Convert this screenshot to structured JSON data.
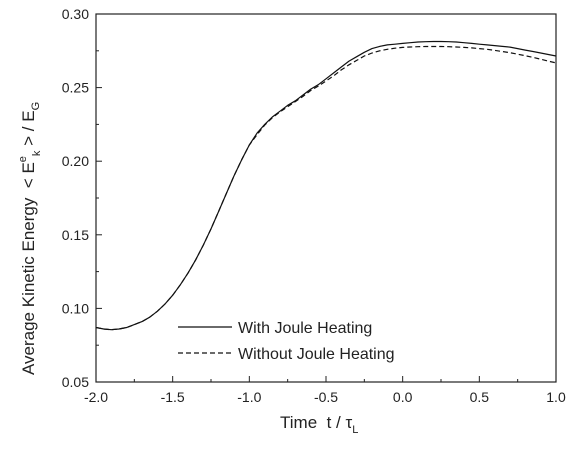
{
  "chart_data": {
    "type": "line",
    "title": "",
    "xlabel": {
      "main": "Time  t / τ",
      "sub": "L"
    },
    "ylabel": {
      "prefix": "Average Kinetic Energy  < E",
      "sup": "e",
      "sub1": "k",
      "mid": " > / E",
      "sub2": "G"
    },
    "xlim": [
      -2.0,
      1.0
    ],
    "ylim": [
      0.05,
      0.3
    ],
    "x_ticks": [
      "-2.0",
      "-1.5",
      "-1.0",
      "-0.5",
      "0.0",
      "0.5",
      "1.0"
    ],
    "y_ticks": [
      "0.05",
      "0.10",
      "0.15",
      "0.20",
      "0.25",
      "0.30"
    ],
    "grid": false,
    "legend_position": "bottom-center",
    "series": [
      {
        "name": "With Joule Heating",
        "style": "solid",
        "x": [
          -2.0,
          -1.95,
          -1.9,
          -1.85,
          -1.8,
          -1.75,
          -1.7,
          -1.65,
          -1.6,
          -1.55,
          -1.5,
          -1.45,
          -1.4,
          -1.35,
          -1.3,
          -1.25,
          -1.2,
          -1.15,
          -1.1,
          -1.05,
          -1.0,
          -0.95,
          -0.9,
          -0.85,
          -0.8,
          -0.75,
          -0.7,
          -0.65,
          -0.6,
          -0.55,
          -0.5,
          -0.45,
          -0.4,
          -0.35,
          -0.3,
          -0.25,
          -0.2,
          -0.15,
          -0.1,
          -0.05,
          0.0,
          0.05,
          0.1,
          0.15,
          0.2,
          0.25,
          0.3,
          0.35,
          0.4,
          0.45,
          0.5,
          0.55,
          0.6,
          0.65,
          0.7,
          0.75,
          0.8,
          0.85,
          0.9,
          0.95,
          1.0
        ],
        "values": [
          0.087,
          0.086,
          0.0855,
          0.086,
          0.087,
          0.089,
          0.091,
          0.094,
          0.098,
          0.103,
          0.109,
          0.116,
          0.124,
          0.133,
          0.143,
          0.154,
          0.166,
          0.178,
          0.19,
          0.201,
          0.211,
          0.219,
          0.225,
          0.23,
          0.234,
          0.238,
          0.241,
          0.245,
          0.249,
          0.252,
          0.256,
          0.26,
          0.264,
          0.268,
          0.271,
          0.274,
          0.2765,
          0.278,
          0.279,
          0.2795,
          0.28,
          0.2805,
          0.281,
          0.2812,
          0.2813,
          0.2813,
          0.2812,
          0.281,
          0.2805,
          0.28,
          0.2795,
          0.279,
          0.2785,
          0.278,
          0.2775,
          0.2765,
          0.2755,
          0.2745,
          0.2735,
          0.2725,
          0.2715
        ]
      },
      {
        "name": "Without Joule Heating",
        "style": "dashed",
        "x": [
          -2.0,
          -1.95,
          -1.9,
          -1.85,
          -1.8,
          -1.75,
          -1.7,
          -1.65,
          -1.6,
          -1.55,
          -1.5,
          -1.45,
          -1.4,
          -1.35,
          -1.3,
          -1.25,
          -1.2,
          -1.15,
          -1.1,
          -1.05,
          -1.0,
          -0.95,
          -0.9,
          -0.85,
          -0.8,
          -0.75,
          -0.7,
          -0.65,
          -0.6,
          -0.55,
          -0.5,
          -0.45,
          -0.4,
          -0.35,
          -0.3,
          -0.25,
          -0.2,
          -0.15,
          -0.1,
          -0.05,
          0.0,
          0.05,
          0.1,
          0.15,
          0.2,
          0.25,
          0.3,
          0.35,
          0.4,
          0.45,
          0.5,
          0.55,
          0.6,
          0.65,
          0.7,
          0.75,
          0.8,
          0.85,
          0.9,
          0.95,
          1.0
        ],
        "values": [
          0.087,
          0.086,
          0.0855,
          0.086,
          0.087,
          0.089,
          0.091,
          0.094,
          0.098,
          0.103,
          0.109,
          0.116,
          0.124,
          0.133,
          0.143,
          0.154,
          0.166,
          0.178,
          0.19,
          0.201,
          0.211,
          0.218,
          0.2245,
          0.2295,
          0.2335,
          0.237,
          0.2405,
          0.244,
          0.248,
          0.251,
          0.2545,
          0.258,
          0.262,
          0.2655,
          0.2685,
          0.2715,
          0.2735,
          0.275,
          0.276,
          0.2768,
          0.2773,
          0.2776,
          0.2778,
          0.2779,
          0.2779,
          0.2779,
          0.2778,
          0.2776,
          0.2773,
          0.277,
          0.2765,
          0.276,
          0.2753,
          0.2745,
          0.2737,
          0.2727,
          0.2717,
          0.2705,
          0.2693,
          0.268,
          0.2668
        ]
      }
    ]
  }
}
